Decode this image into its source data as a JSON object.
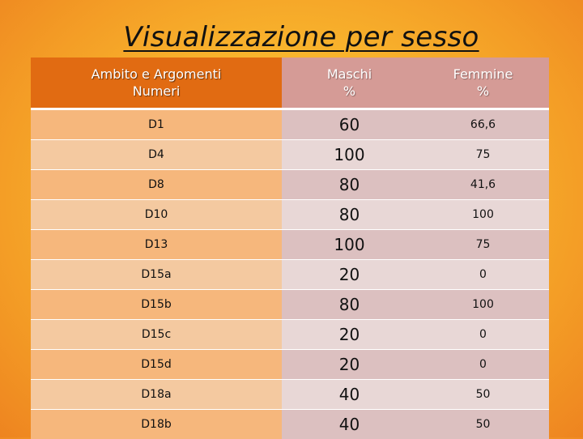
{
  "title": "Visualizzazione per sesso",
  "table": {
    "headers": {
      "ambito_line1": "Ambito e Argomenti",
      "ambito_line2": "Numeri",
      "maschi_line1": "Maschi",
      "maschi_line2": "%",
      "femmine_line1": "Femmine",
      "femmine_line2": "%"
    },
    "rows": [
      {
        "ambito": "D1",
        "maschi": "60",
        "femmine": "66,6"
      },
      {
        "ambito": "D4",
        "maschi": "100",
        "femmine": "75"
      },
      {
        "ambito": "D8",
        "maschi": "80",
        "femmine": "41,6"
      },
      {
        "ambito": "D10",
        "maschi": "80",
        "femmine": "100"
      },
      {
        "ambito": "D13",
        "maschi": "100",
        "femmine": "75"
      },
      {
        "ambito": "D15a",
        "maschi": "20",
        "femmine": "0"
      },
      {
        "ambito": "D15b",
        "maschi": "80",
        "femmine": "100"
      },
      {
        "ambito": "D15c",
        "maschi": "20",
        "femmine": "0"
      },
      {
        "ambito": "D15d",
        "maschi": "20",
        "femmine": "0"
      },
      {
        "ambito": "D18a",
        "maschi": "40",
        "femmine": "50"
      },
      {
        "ambito": "D18b",
        "maschi": "40",
        "femmine": "50"
      }
    ]
  },
  "colors": {
    "header_ambito": "#e16b12",
    "header_sesso": "#d59b96",
    "background": "#f8b22c"
  }
}
